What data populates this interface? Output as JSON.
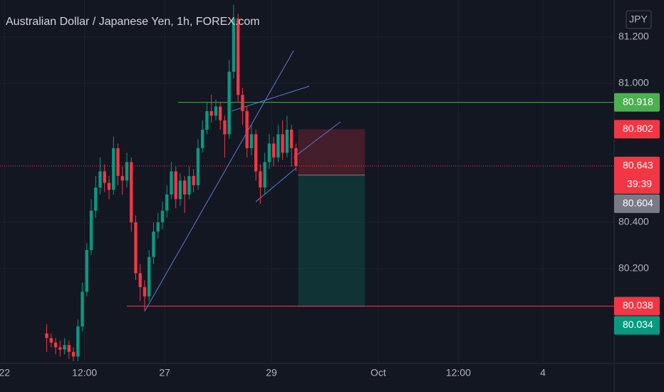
{
  "chart_data": {
    "type": "candlestick",
    "title": "Australian Dollar / Japanese Yen, 1h, FOREX.com",
    "currency": "JPY",
    "up_color": "#089981",
    "down_color": "#f23645",
    "x": [
      -53,
      -51,
      -49,
      -47,
      -45,
      -43,
      -41,
      -39,
      -37,
      -35,
      -33,
      -31,
      -29,
      -27,
      -25,
      -23,
      -21,
      -19,
      -17,
      -15,
      -13,
      -11,
      -9,
      -7,
      -5,
      -3,
      -1,
      1,
      3,
      5,
      7,
      9,
      11,
      13,
      15,
      17,
      19,
      21,
      23,
      25,
      27,
      29,
      31,
      33,
      35,
      37,
      39,
      41,
      43,
      45,
      47,
      49,
      51,
      53,
      55,
      57,
      59
    ],
    "open": [
      79.92,
      79.9,
      79.88,
      79.86,
      79.85,
      79.87,
      79.84,
      79.82,
      79.95,
      80.1,
      80.28,
      80.45,
      80.55,
      80.62,
      80.57,
      80.54,
      80.72,
      80.6,
      80.58,
      80.66,
      80.4,
      80.18,
      80.12,
      80.08,
      80.25,
      80.36,
      80.4,
      80.45,
      80.52,
      80.62,
      80.5,
      80.58,
      80.52,
      80.6,
      80.56,
      80.72,
      80.8,
      80.88,
      80.86,
      80.9,
      80.84,
      80.78,
      81.05,
      81.28,
      80.95,
      80.88,
      80.72,
      80.78,
      80.62,
      80.55,
      80.66,
      80.74,
      80.68,
      80.78,
      80.7,
      80.8,
      80.72
    ],
    "high": [
      79.96,
      79.92,
      79.9,
      79.89,
      79.9,
      79.89,
      79.86,
      79.98,
      80.14,
      80.31,
      80.5,
      80.6,
      80.68,
      80.65,
      80.6,
      80.77,
      80.74,
      80.64,
      80.7,
      80.68,
      80.43,
      80.22,
      80.15,
      80.28,
      80.4,
      80.44,
      80.49,
      80.56,
      80.66,
      80.64,
      80.61,
      80.6,
      80.64,
      80.63,
      80.76,
      80.84,
      80.92,
      80.95,
      80.93,
      80.92,
      80.86,
      81.1,
      81.34,
      81.3,
      80.98,
      80.9,
      80.82,
      80.8,
      80.65,
      80.7,
      80.78,
      80.77,
      80.82,
      80.84,
      80.86,
      80.82,
      80.74
    ],
    "low": [
      79.84,
      79.86,
      79.83,
      79.82,
      79.83,
      79.81,
      79.8,
      79.8,
      79.93,
      80.08,
      80.26,
      80.42,
      80.52,
      80.53,
      80.5,
      80.52,
      80.56,
      80.52,
      80.55,
      80.36,
      80.15,
      80.06,
      80.02,
      80.06,
      80.22,
      80.33,
      80.37,
      80.42,
      80.5,
      80.46,
      80.47,
      80.44,
      80.5,
      80.53,
      80.54,
      80.7,
      80.78,
      80.83,
      80.84,
      80.8,
      80.68,
      80.76,
      81.02,
      80.92,
      80.82,
      80.68,
      80.69,
      80.58,
      80.48,
      80.52,
      80.63,
      80.64,
      80.66,
      80.67,
      80.68,
      80.64,
      80.62
    ],
    "close": [
      79.9,
      79.88,
      79.86,
      79.85,
      79.87,
      79.84,
      79.82,
      79.95,
      80.1,
      80.28,
      80.45,
      80.55,
      80.62,
      80.57,
      80.54,
      80.72,
      80.6,
      80.58,
      80.66,
      80.4,
      80.18,
      80.12,
      80.08,
      80.25,
      80.36,
      80.4,
      80.45,
      80.52,
      80.62,
      80.5,
      80.58,
      80.52,
      80.6,
      80.56,
      80.72,
      80.8,
      80.88,
      80.86,
      80.9,
      80.84,
      80.78,
      81.05,
      81.28,
      80.95,
      80.88,
      80.72,
      80.78,
      80.62,
      80.55,
      80.66,
      80.74,
      80.68,
      80.78,
      80.7,
      80.8,
      80.72,
      80.643
    ],
    "xlim": [
      -74,
      202
    ],
    "xticks": [
      {
        "value": -72,
        "label": "22"
      },
      {
        "value": -36,
        "label": "12:00"
      },
      {
        "value": 0,
        "label": "27"
      },
      {
        "value": 48,
        "label": "29"
      },
      {
        "value": 96,
        "label": "Oct"
      },
      {
        "value": 132,
        "label": "12:00"
      },
      {
        "value": 170,
        "label": "4"
      }
    ],
    "ylim": [
      79.79,
      81.36
    ],
    "yticks": [
      {
        "value": 81.2,
        "label": "81.200"
      },
      {
        "value": 81.0,
        "label": "81.000"
      },
      {
        "value": 80.4,
        "label": "80.400"
      },
      {
        "value": 80.2,
        "label": "80.200"
      }
    ],
    "last_price": 80.643,
    "last_color": "#f23645",
    "countdown": "39:39",
    "hlines": [
      {
        "price": 80.918,
        "color": "#4caf50",
        "from": 6
      },
      {
        "price": 80.038,
        "color": "#f23645",
        "from": -17
      }
    ],
    "position": {
      "x": [
        60,
        90
      ],
      "stop": 80.802,
      "entry": 80.604,
      "target": 80.034,
      "stop_color": "#f23645",
      "entry_color": "#787b86",
      "target_color": "#089981"
    },
    "drawings": [
      {
        "x": [
          -9,
          58
        ],
        "y": [
          80.015,
          81.142
        ]
      },
      {
        "x": [
          30,
          65
        ],
        "y": [
          80.88,
          80.988
        ]
      },
      {
        "x": [
          41,
          59
        ],
        "y": [
          80.489,
          80.634
        ]
      },
      {
        "x": [
          58,
          79
        ],
        "y": [
          80.68,
          80.834
        ]
      }
    ]
  }
}
